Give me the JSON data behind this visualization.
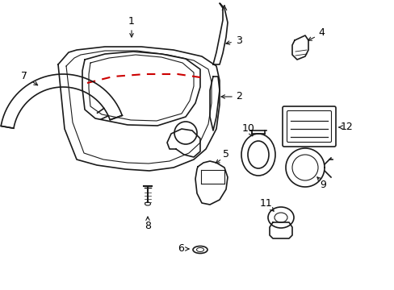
{
  "bg_color": "#ffffff",
  "line_color": "#1a1a1a",
  "red_dash_color": "#cc0000",
  "label_color": "#000000",
  "figsize": [
    4.89,
    3.6
  ],
  "dpi": 100
}
